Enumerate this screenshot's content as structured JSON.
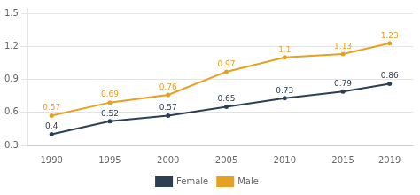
{
  "chart_data": {
    "type": "line",
    "x": [
      1990,
      1995,
      2000,
      2005,
      2010,
      2015,
      2019
    ],
    "series": [
      {
        "name": "Female",
        "color": "#2d3f55",
        "marker": "circle",
        "line_style": "solid",
        "values": [
          0.4,
          0.52,
          0.57,
          0.65,
          0.73,
          0.79,
          0.86
        ]
      },
      {
        "name": "Male",
        "color": "#e8a020",
        "marker": "circle",
        "line_style": "solid",
        "values": [
          0.57,
          0.69,
          0.76,
          0.97,
          1.1,
          1.13,
          1.23
        ]
      }
    ],
    "xlim": [
      1988,
      2021
    ],
    "xticks": [
      1990,
      1995,
      2000,
      2005,
      2010,
      2015,
      2019
    ],
    "ylim": [
      0.3,
      1.55
    ],
    "yticks": [
      0.3,
      0.6,
      0.9,
      1.2,
      1.5
    ],
    "grid": true,
    "legend": "bottom",
    "data_labels": true
  }
}
